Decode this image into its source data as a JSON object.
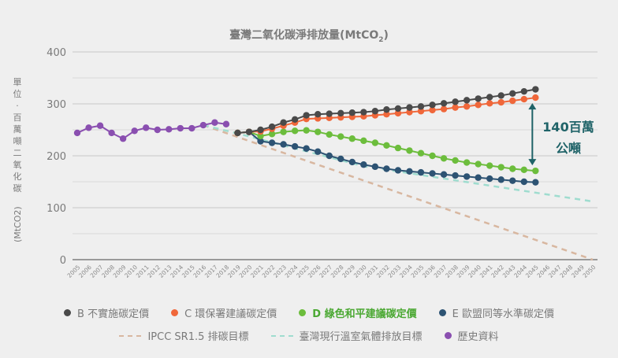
{
  "chart_data": {
    "type": "line",
    "title": "臺灣二氧化碳淨排放量(MtCO₂)",
    "title_main": "臺灣二氧化碳淨排放量(MtCO",
    "title_sub": "2",
    "title_close": ")",
    "ylabel_chars": [
      "單",
      "位",
      "·",
      "百",
      "萬",
      "噸",
      "二",
      "氧",
      "化",
      "碳"
    ],
    "ylabel_unit": "(MtCO2)",
    "xlabel": "",
    "ylim": [
      0,
      400
    ],
    "yticks": [
      "0",
      "100",
      "200",
      "300",
      "400"
    ],
    "ytick_values": [
      0,
      100,
      200,
      300,
      400
    ],
    "xlim": [
      2005,
      2050
    ],
    "x": [
      2005,
      2006,
      2007,
      2008,
      2009,
      2010,
      2011,
      2012,
      2013,
      2014,
      2015,
      2016,
      2017,
      2018,
      2019,
      2020,
      2021,
      2022,
      2023,
      2024,
      2025,
      2026,
      2027,
      2028,
      2029,
      2030,
      2031,
      2032,
      2033,
      2034,
      2035,
      2036,
      2037,
      2038,
      2039,
      2040,
      2041,
      2042,
      2043,
      2044,
      2045,
      2046,
      2047,
      2048,
      2049,
      2050
    ],
    "grid": true,
    "series": [
      {
        "key": "hist",
        "name": "歷史資料",
        "color": "#8a4fb0",
        "style": "line-marker",
        "x": [
          2005,
          2006,
          2007,
          2008,
          2009,
          2010,
          2011,
          2012,
          2013,
          2014,
          2015,
          2016,
          2017,
          2018
        ],
        "values": [
          244,
          254,
          258,
          244,
          233,
          248,
          254,
          250,
          251,
          253,
          253,
          259,
          264,
          261
        ]
      },
      {
        "key": "B",
        "name": "B 不實施碳定價",
        "color": "#4a4a4a",
        "style": "line-marker",
        "x": [
          2019,
          2020,
          2021,
          2022,
          2023,
          2024,
          2025,
          2026,
          2027,
          2028,
          2029,
          2030,
          2031,
          2032,
          2033,
          2034,
          2035,
          2036,
          2037,
          2038,
          2039,
          2040,
          2041,
          2042,
          2043,
          2044,
          2045
        ],
        "values": [
          244,
          246,
          250,
          256,
          264,
          270,
          278,
          280,
          281,
          282,
          283,
          284,
          286,
          289,
          291,
          293,
          295,
          298,
          301,
          304,
          307,
          310,
          313,
          316,
          320,
          324,
          328
        ]
      },
      {
        "key": "C",
        "name": "C 環保署建議碳定價",
        "color": "#f0673a",
        "style": "line-marker",
        "x": [
          2019,
          2020,
          2021,
          2022,
          2023,
          2024,
          2025,
          2026,
          2027,
          2028,
          2029,
          2030,
          2031,
          2032,
          2033,
          2034,
          2035,
          2036,
          2037,
          2038,
          2039,
          2040,
          2041,
          2042,
          2043,
          2044,
          2045
        ],
        "values": [
          244,
          246,
          247,
          252,
          258,
          264,
          271,
          272,
          273,
          274,
          275,
          276,
          278,
          280,
          282,
          284,
          286,
          288,
          290,
          293,
          295,
          298,
          301,
          303,
          306,
          309,
          312
        ]
      },
      {
        "key": "D",
        "name": "D 綠色和平建議碳定價",
        "color": "#6cbd3c",
        "style": "line-marker",
        "bold_label": true,
        "x": [
          2019,
          2020,
          2021,
          2022,
          2023,
          2024,
          2025,
          2026,
          2027,
          2028,
          2029,
          2030,
          2031,
          2032,
          2033,
          2034,
          2035,
          2036,
          2037,
          2038,
          2039,
          2040,
          2041,
          2042,
          2043,
          2044,
          2045
        ],
        "values": [
          244,
          246,
          238,
          242,
          246,
          248,
          249,
          246,
          241,
          237,
          233,
          229,
          225,
          220,
          215,
          210,
          205,
          200,
          195,
          191,
          187,
          184,
          181,
          178,
          175,
          173,
          171
        ]
      },
      {
        "key": "E",
        "name": "E 歐盟同等水準碳定價",
        "color": "#2d5373",
        "style": "line-marker",
        "x": [
          2019,
          2020,
          2021,
          2022,
          2023,
          2024,
          2025,
          2026,
          2027,
          2028,
          2029,
          2030,
          2031,
          2032,
          2033,
          2034,
          2035,
          2036,
          2037,
          2038,
          2039,
          2040,
          2041,
          2042,
          2043,
          2044,
          2045
        ],
        "values": [
          244,
          246,
          228,
          225,
          222,
          218,
          214,
          208,
          200,
          194,
          188,
          183,
          179,
          175,
          172,
          170,
          168,
          166,
          164,
          162,
          160,
          158,
          156,
          154,
          152,
          150,
          149
        ]
      },
      {
        "key": "ipcc",
        "name": "IPCC SR1.5 排碳目標",
        "color": "#d8b7a0",
        "style": "dashed",
        "x": [
          2016,
          2050
        ],
        "values": [
          259,
          0
        ]
      },
      {
        "key": "tw",
        "name": "臺灣現行溫室氣體排放目標",
        "color": "#9fdccf",
        "style": "dashed",
        "x": [
          2016,
          2019,
          2030,
          2050
        ],
        "values": [
          259,
          243,
          180,
          112
        ]
      }
    ],
    "annotations": [
      {
        "text_line1": "140百萬",
        "text_line2": "公噸",
        "type": "double-arrow",
        "x": 2045,
        "from": 312,
        "to": 171,
        "color": "#1f6368"
      }
    ],
    "legend_position": "bottom"
  },
  "legend": {
    "row1": [
      {
        "key": "B",
        "label": "B 不實施碳定價",
        "color": "#4a4a4a",
        "marker": "dot"
      },
      {
        "key": "C",
        "label": "C 環保署建議碳定價",
        "color": "#f0673a",
        "marker": "dot"
      },
      {
        "key": "D",
        "label": "D 綠色和平建議碳定價",
        "color": "#6cbd3c",
        "marker": "dot",
        "text_color": "#4aa832"
      },
      {
        "key": "E",
        "label": "E 歐盟同等水準碳定價",
        "color": "#2d5373",
        "marker": "dot"
      }
    ],
    "row2": [
      {
        "key": "ipcc",
        "label": "IPCC SR1.5 排碳目標",
        "color": "#d8b7a0",
        "marker": "dash"
      },
      {
        "key": "tw",
        "label": "臺灣現行溫室氣體排放目標",
        "color": "#9fdccf",
        "marker": "dash"
      },
      {
        "key": "hist",
        "label": "歷史資料",
        "color": "#8a4fb0",
        "marker": "dot"
      }
    ]
  }
}
